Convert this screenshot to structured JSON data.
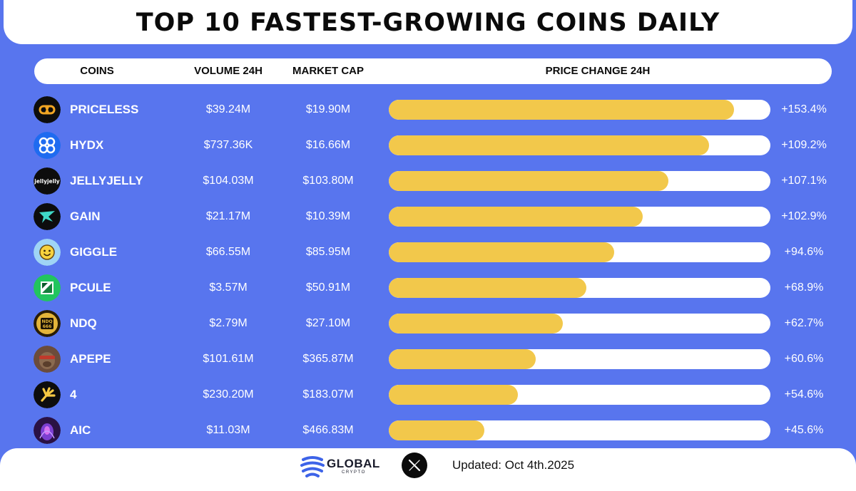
{
  "title": "TOP 10 FASTEST-GROWING COINS DAILY",
  "headers": {
    "coins": "COINS",
    "volume": "VOLUME 24H",
    "market_cap": "MARKET CAP",
    "price_change": "PRICE CHANGE 24H"
  },
  "rows": [
    {
      "name": "PRICELESS",
      "volume": "$39.24M",
      "market_cap": "$19.90M",
      "change_label": "+153.4%",
      "fill": 0.905,
      "icon": "priceless-logo-icon"
    },
    {
      "name": "HYDX",
      "volume": "$737.36K",
      "market_cap": "$16.66M",
      "change_label": "+109.2%",
      "fill": 0.84,
      "icon": "hydx-logo-icon"
    },
    {
      "name": "JELLYJELLY",
      "volume": "$104.03M",
      "market_cap": "$103.80M",
      "change_label": "+107.1%",
      "fill": 0.733,
      "icon": "jellyjelly-logo-icon"
    },
    {
      "name": "GAIN",
      "volume": "$21.17M",
      "market_cap": "$10.39M",
      "change_label": "+102.9%",
      "fill": 0.665,
      "icon": "gain-logo-icon"
    },
    {
      "name": "GIGGLE",
      "volume": "$66.55M",
      "market_cap": "$85.95M",
      "change_label": "+94.6%",
      "fill": 0.59,
      "icon": "giggle-logo-icon"
    },
    {
      "name": "PCULE",
      "volume": "$3.57M",
      "market_cap": "$50.91M",
      "change_label": "+68.9%",
      "fill": 0.518,
      "icon": "pcule-logo-icon"
    },
    {
      "name": "NDQ",
      "volume": "$2.79M",
      "market_cap": "$27.10M",
      "change_label": "+62.7%",
      "fill": 0.456,
      "icon": "ndq-logo-icon"
    },
    {
      "name": "APEPE",
      "volume": "$101.61M",
      "market_cap": "$365.87M",
      "change_label": "+60.6%",
      "fill": 0.385,
      "icon": "apepe-logo-icon"
    },
    {
      "name": "4",
      "volume": "$230.20M",
      "market_cap": "$183.07M",
      "change_label": "+54.6%",
      "fill": 0.338,
      "icon": "four-logo-icon"
    },
    {
      "name": "AIC",
      "volume": "$11.03M",
      "market_cap": "$466.83M",
      "change_label": "+45.6%",
      "fill": 0.25,
      "icon": "aic-logo-icon"
    }
  ],
  "chart_data": {
    "type": "bar",
    "orientation": "horizontal",
    "title": "TOP 10 FASTEST-GROWING COINS DAILY",
    "categories": [
      "PRICELESS",
      "HYDX",
      "JELLYJELLY",
      "GAIN",
      "GIGGLE",
      "PCULE",
      "NDQ",
      "APEPE",
      "4",
      "AIC"
    ],
    "values": [
      153.4,
      109.2,
      107.1,
      102.9,
      94.6,
      68.9,
      62.7,
      60.6,
      54.6,
      45.6
    ],
    "unit": "%",
    "grid": false
  },
  "jelly_logo_text": "jellyjelly",
  "ndq_logo_text": [
    "NDQ",
    "666"
  ],
  "footer": {
    "brand": "GLOBAL",
    "brand_sub": "CRYPTO",
    "updated": "Updated: Oct 4th.2025"
  },
  "colors": {
    "background": "#5875ee",
    "bar_fill": "#f2c84b",
    "bar_track": "#ffffff",
    "text": "#ffffff"
  }
}
